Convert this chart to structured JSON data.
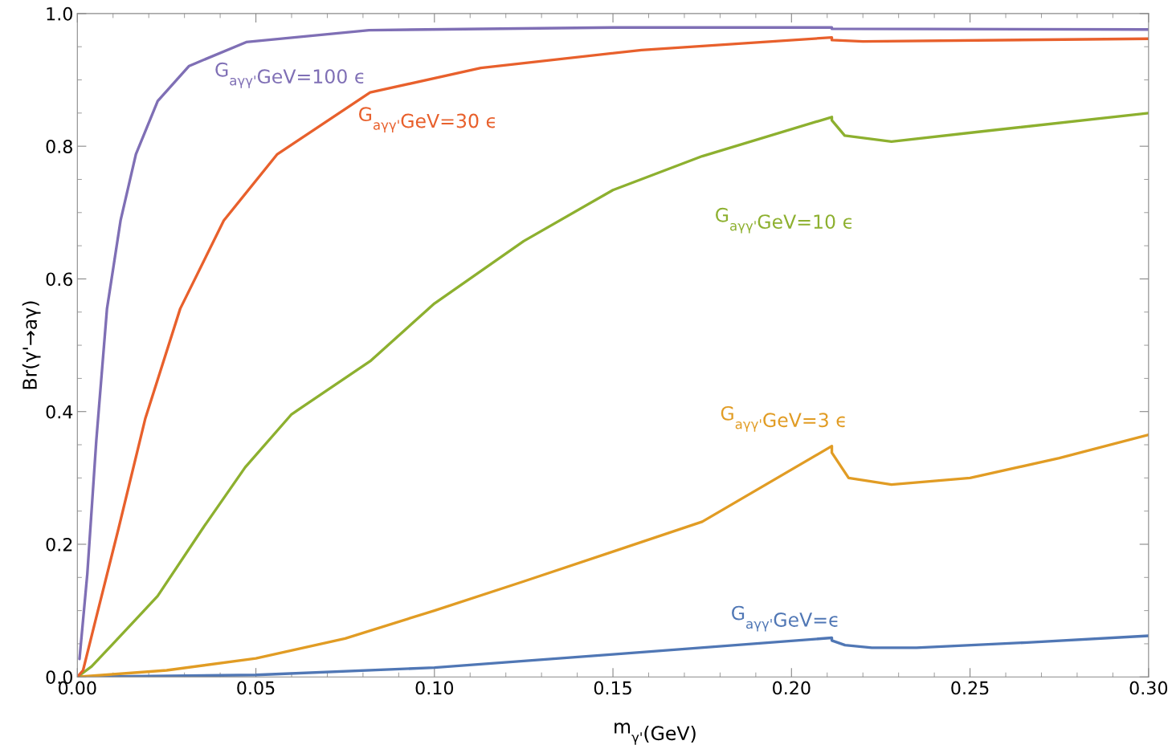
{
  "chart_data": {
    "type": "line",
    "xlabel": "m$_{γ'}$(GeV)",
    "ylabel": "Br(γ'→aγ)",
    "xlim": [
      0,
      0.3
    ],
    "ylim": [
      0,
      1.0
    ],
    "xticks": [
      {
        "value": 0,
        "label": "0.00"
      },
      {
        "value": 0.05,
        "label": "0.05"
      },
      {
        "value": 0.1,
        "label": "0.10"
      },
      {
        "value": 0.15,
        "label": "0.15"
      },
      {
        "value": 0.2,
        "label": "0.20"
      },
      {
        "value": 0.3,
        "label": "0.30"
      },
      {
        "value": 0.25,
        "label": "0.25"
      }
    ],
    "yticks": [
      {
        "value": 0,
        "label": "0.0"
      },
      0.2,
      0.4,
      0.6,
      0.8,
      {
        "value": 1.0,
        "label": "1.0"
      }
    ],
    "grid": false,
    "legend": false,
    "marker": "none",
    "line_style": "solid",
    "series": [
      {
        "color": "#5077b5",
        "x": [
          0,
          0.05,
          0.1,
          0.15,
          0.2113,
          0.2113,
          0.215,
          0.2225,
          0.235,
          0.266,
          0.3
        ],
        "values": [
          0,
          0.003,
          0.014,
          0.034,
          0.059,
          0.055,
          0.048,
          0.044,
          0.044,
          0.052,
          0.062
        ]
      },
      {
        "color": "#e19c24",
        "x": [
          0,
          0.025,
          0.05,
          0.075,
          0.1,
          0.125,
          0.15,
          0.175,
          0.2113,
          0.2113,
          0.216,
          0.228,
          0.25,
          0.275,
          0.3
        ],
        "values": [
          0,
          0.01,
          0.028,
          0.058,
          0.1,
          0.144,
          0.189,
          0.234,
          0.348,
          0.338,
          0.3,
          0.29,
          0.3,
          0.33,
          0.365
        ]
      },
      {
        "color": "#8db02f",
        "x": [
          0,
          0.004,
          0.01,
          0.0225,
          0.035,
          0.047,
          0.06,
          0.082,
          0.1,
          0.125,
          0.15,
          0.175,
          0.2113,
          0.2113,
          0.2149,
          0.228,
          0.2528,
          0.3
        ],
        "values": [
          0,
          0.016,
          0.05,
          0.122,
          0.223,
          0.316,
          0.396,
          0.476,
          0.563,
          0.657,
          0.734,
          0.785,
          0.844,
          0.839,
          0.816,
          0.807,
          0.822,
          0.85
        ]
      },
      {
        "color": "#e8602c",
        "x": [
          0,
          0.0016,
          0.0053,
          0.0115,
          0.019,
          0.0288,
          0.041,
          0.056,
          0.082,
          0.113,
          0.158,
          0.2113,
          0.2113,
          0.22,
          0.3
        ],
        "values": [
          0,
          0.01,
          0.09,
          0.223,
          0.389,
          0.555,
          0.688,
          0.788,
          0.881,
          0.918,
          0.945,
          0.964,
          0.96,
          0.958,
          0.962
        ]
      },
      {
        "color": "#7f6fb5",
        "x": [
          0.0006,
          0.0028,
          0.0053,
          0.0083,
          0.0121,
          0.0164,
          0.0225,
          0.0313,
          0.0473,
          0.0817,
          0.15,
          0.2113,
          0.2113,
          0.3
        ],
        "values": [
          0.027,
          0.156,
          0.356,
          0.555,
          0.688,
          0.788,
          0.868,
          0.921,
          0.957,
          0.975,
          0.979,
          0.979,
          0.977,
          0.976
        ]
      }
    ],
    "annotations": [
      "G$_{aγγ'}$GeV=ϵ",
      "G$_{aγγ'}$GeV=3 ϵ",
      "G$_{aγγ'}$GeV=10 ϵ",
      "G$_{aγγ'}$GeV=30 ϵ",
      "G$_{aγγ'}$GeV=100 ϵ"
    ]
  }
}
